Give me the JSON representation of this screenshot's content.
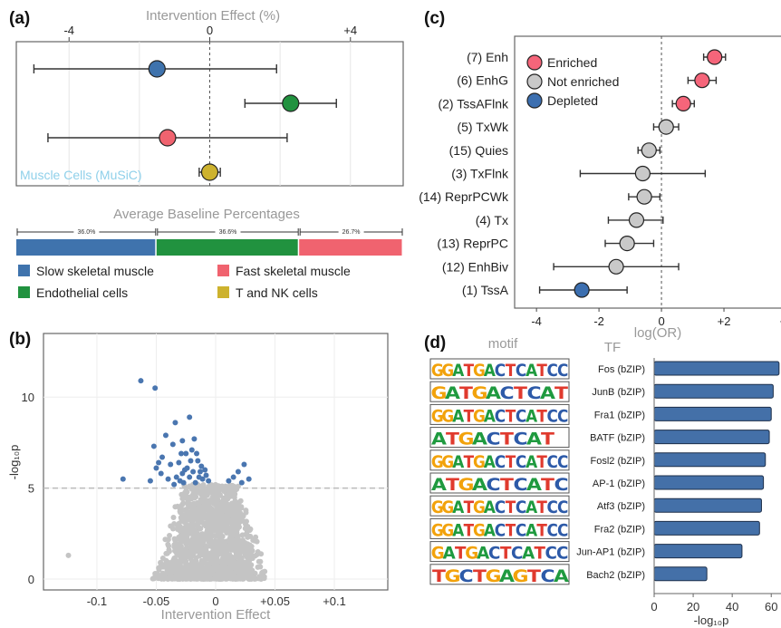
{
  "colors": {
    "slow": "#3f73ad",
    "endo": "#21923f",
    "fast": "#f0636f",
    "tnk": "#cdb22e",
    "enriched": "#f5657a",
    "not_enriched": "#c9c9c9",
    "depleted": "#3c6fb0",
    "volcano_sig": "#4a76b0",
    "volcano_ns": "#c4c4c4",
    "bar": "#4470a8"
  },
  "panel_labels": {
    "a": "(a)",
    "b": "(b)",
    "c": "(c)",
    "d": "(d)"
  },
  "chart_data": [
    {
      "panel": "a-top",
      "type": "scatter",
      "title": "Intervention Effect (%)",
      "xlim": [
        -5.5,
        5.5
      ],
      "x_ticks": [
        "-4",
        "0",
        "+4"
      ],
      "x_tick_values": [
        -4,
        0,
        4
      ],
      "grid": true,
      "watermark": "Muscle Cells (MuSiC)",
      "points": [
        {
          "name": "Slow skeletal muscle",
          "value": -1.5,
          "lo": -5.0,
          "hi": 1.9,
          "color_key": "slow"
        },
        {
          "name": "Endothelial cells",
          "value": 2.3,
          "lo": 1.0,
          "hi": 3.6,
          "color_key": "endo"
        },
        {
          "name": "Fast skeletal muscle",
          "value": -1.2,
          "lo": -4.6,
          "hi": 2.2,
          "color_key": "fast"
        },
        {
          "name": "T and NK cells",
          "value": 0.0,
          "lo": -0.3,
          "hi": 0.3,
          "color_key": "tnk"
        }
      ]
    },
    {
      "panel": "a-bottom",
      "type": "bar",
      "title": "Average Baseline Percentages",
      "segments": [
        {
          "name": "Slow skeletal muscle",
          "value": 36.0,
          "label": "36.0%",
          "color_key": "slow"
        },
        {
          "name": "Endothelial cells",
          "value": 36.6,
          "label": "36.6%",
          "color_key": "endo"
        },
        {
          "name": "Fast skeletal muscle",
          "value": 26.7,
          "label": "26.7%",
          "color_key": "fast"
        }
      ],
      "legend": [
        {
          "label": "Slow skeletal muscle",
          "color_key": "slow"
        },
        {
          "label": "Fast skeletal muscle",
          "color_key": "fast"
        },
        {
          "label": "Endothelial cells",
          "color_key": "endo"
        },
        {
          "label": "T and NK cells",
          "color_key": "tnk"
        }
      ]
    },
    {
      "panel": "b",
      "type": "scatter",
      "xlabel": "Intervention Effect",
      "ylabel": "-log₁₀p",
      "xlim": [
        -0.145,
        0.145
      ],
      "ylim": [
        -0.6,
        13.5
      ],
      "x_ticks": [
        "-0.1",
        "-0.05",
        "0",
        "+0.05",
        "+0.1"
      ],
      "x_tick_values": [
        -0.1,
        -0.05,
        0,
        0.05,
        0.1
      ],
      "y_ticks": [
        "0",
        "5",
        "10"
      ],
      "y_tick_values": [
        0,
        5,
        10
      ],
      "threshold": 5,
      "significant_points": [
        [
          -0.063,
          10.9
        ],
        [
          -0.051,
          10.5
        ],
        [
          -0.078,
          5.5
        ],
        [
          -0.042,
          7.9
        ],
        [
          -0.034,
          8.6
        ],
        [
          -0.036,
          7.4
        ],
        [
          -0.022,
          8.9
        ],
        [
          -0.028,
          7.6
        ],
        [
          -0.018,
          7.7
        ],
        [
          -0.025,
          6.9
        ],
        [
          -0.045,
          6.7
        ],
        [
          -0.038,
          6.3
        ],
        [
          -0.031,
          6.4
        ],
        [
          -0.021,
          6.5
        ],
        [
          -0.016,
          6.9
        ],
        [
          -0.012,
          6.2
        ],
        [
          -0.009,
          6.0
        ],
        [
          -0.014,
          5.6
        ],
        [
          -0.019,
          5.9
        ],
        [
          -0.024,
          6.1
        ],
        [
          -0.028,
          5.8
        ],
        [
          -0.033,
          5.6
        ],
        [
          -0.04,
          5.5
        ],
        [
          -0.046,
          5.8
        ],
        [
          -0.05,
          6.1
        ],
        [
          -0.055,
          5.4
        ],
        [
          -0.011,
          5.5
        ],
        [
          -0.006,
          5.4
        ],
        [
          -0.017,
          5.3
        ],
        [
          -0.022,
          5.6
        ],
        [
          -0.027,
          5.3
        ],
        [
          -0.035,
          5.2
        ],
        [
          -0.02,
          7.1
        ],
        [
          -0.015,
          6.5
        ],
        [
          -0.029,
          6.9
        ],
        [
          0.015,
          5.6
        ],
        [
          0.019,
          5.9
        ],
        [
          0.024,
          6.3
        ],
        [
          0.011,
          5.4
        ],
        [
          0.028,
          5.5
        ],
        [
          0.022,
          5.3
        ],
        [
          -0.026,
          6.0
        ],
        [
          -0.013,
          5.9
        ],
        [
          -0.008,
          5.7
        ],
        [
          -0.03,
          5.4
        ],
        [
          -0.052,
          7.3
        ],
        [
          -0.048,
          6.4
        ]
      ],
      "extreme_ns_points": [
        [
          -0.124,
          1.3
        ]
      ]
    },
    {
      "panel": "c",
      "type": "scatter",
      "xlabel": "log(OR)",
      "xlim": [
        -4.7,
        4.0
      ],
      "x_ticks": [
        "-4",
        "-2",
        "0",
        "+2",
        "+4"
      ],
      "x_tick_values": [
        -4,
        -2,
        0,
        2,
        4
      ],
      "legend": [
        {
          "label": "Enriched",
          "color_key": "enriched"
        },
        {
          "label": "Not enriched",
          "color_key": "not_enriched"
        },
        {
          "label": "Depleted",
          "color_key": "depleted"
        }
      ],
      "categories": [
        "(7) Enh",
        "(6) EnhG",
        "(2) TssAFlnk",
        "(5) TxWk",
        "(15) Quies",
        "(3) TxFlnk",
        "(14) ReprPCWk",
        "(4) Tx",
        "(13) ReprPC",
        "(12) EnhBiv",
        "(1) TssA"
      ],
      "values": [
        1.7,
        1.3,
        0.7,
        0.15,
        -0.4,
        -0.6,
        -0.55,
        -0.8,
        -1.1,
        -1.45,
        -2.55
      ],
      "lo": [
        1.35,
        0.85,
        0.35,
        -0.25,
        -0.75,
        -2.6,
        -1.05,
        -1.7,
        -1.8,
        -3.45,
        -3.9
      ],
      "hi": [
        2.05,
        1.75,
        1.05,
        0.55,
        -0.05,
        1.4,
        -0.05,
        0.05,
        -0.25,
        0.55,
        -1.1
      ],
      "status": [
        "enriched",
        "enriched",
        "enriched",
        "not_enriched",
        "not_enriched",
        "not_enriched",
        "not_enriched",
        "not_enriched",
        "not_enriched",
        "not_enriched",
        "depleted"
      ]
    },
    {
      "panel": "d",
      "type": "bar",
      "orientation": "horizontal",
      "motif_header": "motif",
      "tf_header": "TF",
      "xlabel": "-log₁₀p",
      "xlim": [
        0,
        65
      ],
      "x_ticks": [
        "0",
        "20",
        "40",
        "60"
      ],
      "x_tick_values": [
        0,
        20,
        40,
        60
      ],
      "categories": [
        "Fos (bZIP)",
        "JunB (bZIP)",
        "Fra1 (bZIP)",
        "BATF (bZIP)",
        "Fosl2 (bZIP)",
        "AP-1 (bZIP)",
        "Atf3 (bZIP)",
        "Fra2 (bZIP)",
        "Jun-AP1 (bZIP)",
        "Bach2 (bZIP)"
      ],
      "values": [
        64,
        61,
        60,
        59,
        57,
        56,
        55,
        54,
        45,
        27
      ],
      "motifs": [
        "GGATGACTCATCC",
        "GATGACTCAT",
        "GGATGACTCATCC",
        "ATGACTCAT",
        "GGATGACTCATCC",
        "ATGACTCATC",
        "GGATGACTCATCC",
        "GGATGACTCATCC",
        "GATGACTCATCC",
        "TGCTGAGTCA"
      ]
    }
  ]
}
